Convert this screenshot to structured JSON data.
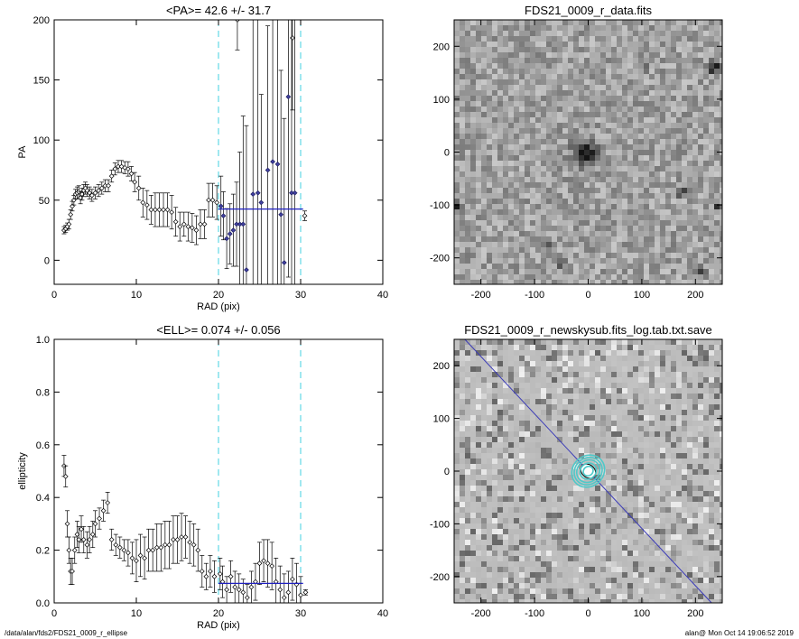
{
  "footer": {
    "path": "/data/alan/fds2/FDS21_0009_r_ellipse",
    "stamp": "alan@  Mon Oct 14 19:06:52 2019"
  },
  "chart_data": [
    {
      "type": "scatter",
      "title": "<PA>=  42.6 +/-  31.7",
      "xlabel": "RAD (pix)",
      "ylabel": "PA",
      "xlim": [
        0,
        40
      ],
      "ylim": [
        -20,
        200
      ],
      "xticks": [
        0,
        10,
        20,
        30,
        40
      ],
      "yticks": [
        0,
        50,
        100,
        150,
        200
      ],
      "vlines": [
        20,
        30
      ],
      "hline": {
        "y": 42.6,
        "x": [
          20,
          30.3
        ]
      },
      "series": [
        {
          "marker": "diamond",
          "color": "#000000",
          "points": [
            [
              1.2,
              25,
              3
            ],
            [
              1.4,
              26,
              3
            ],
            [
              1.6,
              28,
              3
            ],
            [
              1.8,
              30,
              4
            ],
            [
              2.0,
              38,
              4
            ],
            [
              2.2,
              45,
              4
            ],
            [
              2.4,
              50,
              4
            ],
            [
              2.6,
              55,
              4
            ],
            [
              2.8,
              56,
              5
            ],
            [
              3.0,
              57,
              5
            ],
            [
              3.2,
              52,
              5
            ],
            [
              3.4,
              55,
              5
            ],
            [
              3.6,
              58,
              5
            ],
            [
              3.8,
              60,
              5
            ],
            [
              4.0,
              58,
              5
            ],
            [
              4.3,
              56,
              5
            ],
            [
              4.6,
              54,
              5
            ],
            [
              5.0,
              56,
              5
            ],
            [
              5.4,
              58,
              5
            ],
            [
              5.8,
              60,
              5
            ],
            [
              6.2,
              62,
              5
            ],
            [
              6.6,
              62,
              5
            ],
            [
              7.0,
              70,
              5
            ],
            [
              7.4,
              76,
              5
            ],
            [
              7.8,
              78,
              5
            ],
            [
              8.2,
              78,
              5
            ],
            [
              8.6,
              77,
              5
            ],
            [
              9.0,
              76,
              6
            ],
            [
              9.4,
              72,
              6
            ],
            [
              9.8,
              65,
              8
            ],
            [
              10.3,
              60,
              10
            ],
            [
              10.8,
              48,
              12
            ],
            [
              11.3,
              46,
              12
            ],
            [
              11.8,
              42,
              12
            ],
            [
              12.3,
              42,
              14
            ],
            [
              12.8,
              42,
              14
            ],
            [
              13.3,
              42,
              14
            ],
            [
              13.8,
              42,
              14
            ],
            [
              14.3,
              40,
              14
            ],
            [
              14.8,
              32,
              12
            ],
            [
              15.3,
              28,
              12
            ],
            [
              15.8,
              30,
              10
            ],
            [
              16.3,
              28,
              12
            ],
            [
              16.8,
              27,
              12
            ],
            [
              17.3,
              25,
              12
            ],
            [
              17.8,
              30,
              12
            ],
            [
              18.3,
              30,
              12
            ],
            [
              18.8,
              50,
              14
            ],
            [
              19.3,
              50,
              14
            ],
            [
              19.8,
              48,
              14
            ],
            [
              22.3,
              200,
              25
            ],
            [
              29.0,
              185,
              60
            ],
            [
              30.5,
              37,
              4
            ]
          ]
        },
        {
          "marker": "diamond",
          "color": "#4040a0",
          "points": [
            [
              20.3,
              45,
              25
            ],
            [
              20.6,
              37,
              20
            ],
            [
              21.0,
              18,
              25
            ],
            [
              21.4,
              22,
              25
            ],
            [
              21.8,
              25,
              30
            ],
            [
              22.2,
              30,
              35
            ],
            [
              22.6,
              30,
              60
            ],
            [
              23.0,
              30,
              90
            ],
            [
              23.4,
              -8,
              120
            ],
            [
              24.2,
              55,
              150
            ],
            [
              24.8,
              56,
              150
            ],
            [
              25.2,
              48,
              90
            ],
            [
              26.0,
              75,
              120
            ],
            [
              26.6,
              82,
              150
            ],
            [
              27.2,
              80,
              150
            ],
            [
              27.6,
              38,
              120
            ],
            [
              28.0,
              -2,
              120
            ],
            [
              28.5,
              136,
              150
            ],
            [
              28.9,
              56,
              150
            ],
            [
              29.3,
              56,
              150
            ]
          ]
        }
      ]
    },
    {
      "type": "scatter",
      "title": "<ELL>= 0.074 +/-  0.056",
      "xlabel": "RAD (pix)",
      "ylabel": "ellipticity",
      "xlim": [
        0,
        40
      ],
      "ylim": [
        0,
        1.0
      ],
      "xticks": [
        0,
        10,
        20,
        30,
        40
      ],
      "yticks": [
        0.0,
        0.2,
        0.4,
        0.6,
        0.8,
        1.0
      ],
      "vlines": [
        20,
        30
      ],
      "hline": {
        "y": 0.074,
        "x": [
          20,
          30.3
        ]
      },
      "series": [
        {
          "marker": "diamond",
          "color": "#000000",
          "points": [
            [
              1.2,
              0.52,
              0.04
            ],
            [
              1.4,
              0.48,
              0.04
            ],
            [
              1.6,
              0.3,
              0.05
            ],
            [
              1.8,
              0.2,
              0.05
            ],
            [
              2.0,
              0.12,
              0.05
            ],
            [
              2.2,
              0.12,
              0.05
            ],
            [
              2.5,
              0.2,
              0.05
            ],
            [
              2.8,
              0.26,
              0.05
            ],
            [
              3.0,
              0.24,
              0.05
            ],
            [
              3.3,
              0.28,
              0.05
            ],
            [
              3.6,
              0.24,
              0.05
            ],
            [
              4.0,
              0.22,
              0.05
            ],
            [
              4.3,
              0.24,
              0.05
            ],
            [
              4.7,
              0.26,
              0.05
            ],
            [
              5.0,
              0.3,
              0.05
            ],
            [
              5.5,
              0.32,
              0.04
            ],
            [
              6.0,
              0.35,
              0.04
            ],
            [
              6.5,
              0.38,
              0.04
            ],
            [
              7.0,
              0.24,
              0.04
            ],
            [
              7.5,
              0.22,
              0.04
            ],
            [
              8.0,
              0.21,
              0.04
            ],
            [
              8.5,
              0.2,
              0.04
            ],
            [
              9.0,
              0.19,
              0.05
            ],
            [
              9.5,
              0.17,
              0.06
            ],
            [
              10.0,
              0.16,
              0.08
            ],
            [
              10.5,
              0.18,
              0.08
            ],
            [
              11.0,
              0.17,
              0.08
            ],
            [
              11.5,
              0.2,
              0.08
            ],
            [
              12.0,
              0.2,
              0.08
            ],
            [
              12.5,
              0.21,
              0.09
            ],
            [
              13.0,
              0.21,
              0.09
            ],
            [
              13.5,
              0.22,
              0.09
            ],
            [
              14.0,
              0.22,
              0.09
            ],
            [
              14.5,
              0.24,
              0.09
            ],
            [
              15.0,
              0.24,
              0.09
            ],
            [
              15.5,
              0.25,
              0.09
            ],
            [
              16.0,
              0.25,
              0.08
            ],
            [
              16.5,
              0.23,
              0.08
            ],
            [
              17.0,
              0.22,
              0.08
            ],
            [
              17.5,
              0.2,
              0.08
            ],
            [
              18.0,
              0.12,
              0.06
            ],
            [
              18.5,
              0.1,
              0.05
            ],
            [
              19.0,
              0.12,
              0.06
            ],
            [
              19.5,
              0.1,
              0.06
            ],
            [
              20.2,
              0.11,
              0.06
            ],
            [
              20.5,
              0.08,
              0.06
            ],
            [
              21.0,
              0.05,
              0.05
            ],
            [
              21.5,
              0.1,
              0.06
            ],
            [
              22.0,
              0.06,
              0.06
            ],
            [
              22.5,
              0.05,
              0.06
            ],
            [
              23.0,
              0.04,
              0.05
            ],
            [
              23.5,
              0.02,
              0.05
            ],
            [
              24.0,
              0.06,
              0.06
            ],
            [
              24.5,
              0.08,
              0.07
            ],
            [
              25.0,
              0.15,
              0.08
            ],
            [
              25.5,
              0.16,
              0.08
            ],
            [
              26.0,
              0.15,
              0.09
            ],
            [
              26.5,
              0.14,
              0.09
            ],
            [
              27.0,
              0.08,
              0.09
            ],
            [
              27.5,
              0.05,
              0.09
            ],
            [
              28.0,
              0.02,
              0.09
            ],
            [
              28.5,
              0.04,
              0.08
            ],
            [
              29.0,
              0.09,
              0.08
            ],
            [
              29.5,
              0.07,
              0.08
            ],
            [
              30.0,
              0.03,
              0.07
            ],
            [
              30.6,
              0.04,
              0.01
            ]
          ]
        }
      ]
    },
    {
      "type": "heatmap",
      "title": "FDS21_0009_r_data.fits",
      "xlim": [
        -250,
        250
      ],
      "ylim": [
        -250,
        250
      ],
      "xticks": [
        -200,
        -100,
        0,
        100,
        200
      ],
      "yticks": [
        -200,
        -100,
        0,
        100,
        200
      ],
      "sources": [
        {
          "x": -5,
          "y": 0,
          "r": 22,
          "v": 0.9
        },
        {
          "x": 235,
          "y": 160,
          "r": 10,
          "v": 1.0
        },
        {
          "x": 175,
          "y": -75,
          "r": 8,
          "v": 1.0
        },
        {
          "x": 240,
          "y": -105,
          "r": 7,
          "v": 0.9
        },
        {
          "x": 210,
          "y": -225,
          "r": 8,
          "v": 0.8
        },
        {
          "x": -245,
          "y": -100,
          "r": 7,
          "v": 0.9
        },
        {
          "x": -72,
          "y": -178,
          "r": 7,
          "v": 0.7
        },
        {
          "x": -50,
          "y": -210,
          "r": 7,
          "v": 0.6
        },
        {
          "x": 110,
          "y": 160,
          "r": 5,
          "v": 0.5
        }
      ]
    },
    {
      "type": "heatmap",
      "title": "FDS21_0009_r_newskysub.fits_log.tab.txt.save",
      "xlim": [
        -250,
        250
      ],
      "ylim": [
        -250,
        250
      ],
      "xticks": [
        -200,
        -100,
        0,
        100,
        200
      ],
      "yticks": [
        -200,
        -100,
        0,
        100,
        200
      ],
      "axis_line": {
        "from": [
          -230,
          250
        ],
        "to": [
          230,
          -250
        ],
        "color": "#3a3ab8"
      },
      "ellipses": {
        "color": "#4fc9c9",
        "radii": [
          6,
          10,
          14,
          17,
          20
        ]
      }
    }
  ]
}
